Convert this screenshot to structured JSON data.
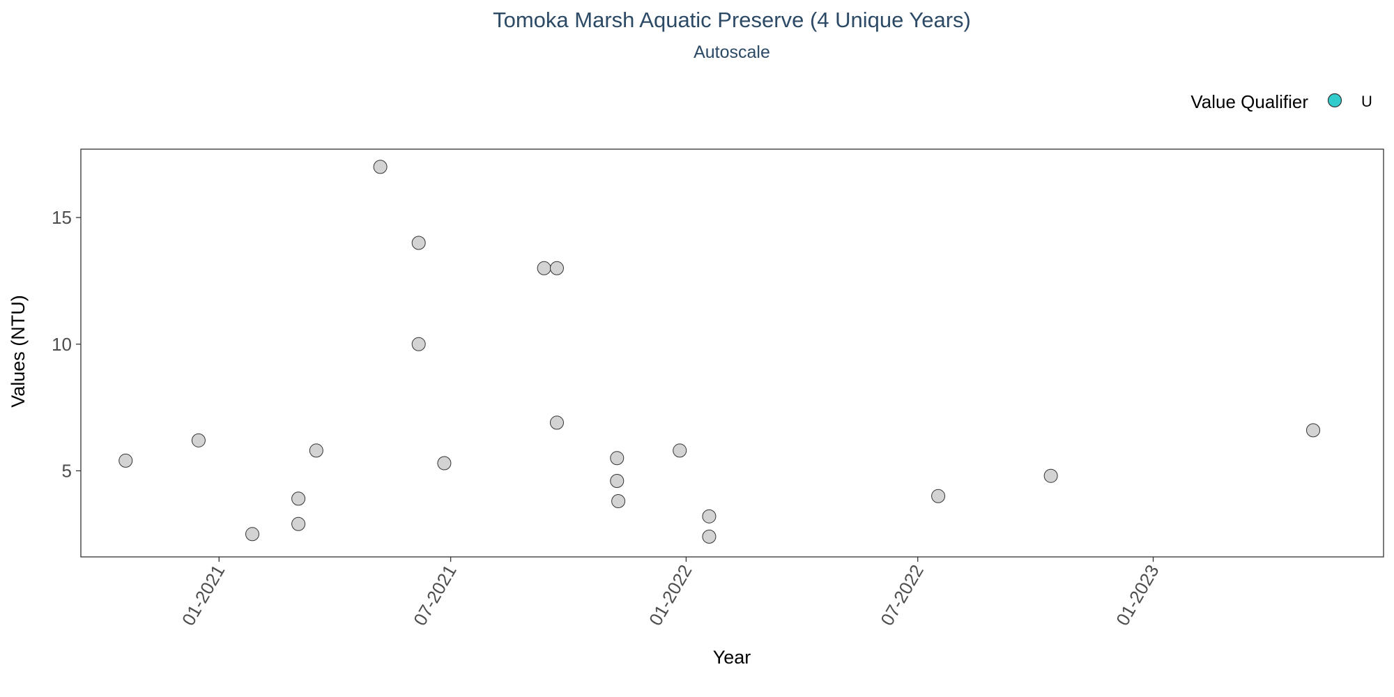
{
  "chart_data": {
    "type": "scatter",
    "title": "Tomoka Marsh Aquatic Preserve (4 Unique Years)",
    "subtitle": "Autoscale",
    "xlabel": "Year",
    "ylabel": "Values (NTU)",
    "x_ticks": [
      "01-2021",
      "07-2021",
      "01-2022",
      "07-2022",
      "01-2023"
    ],
    "y_ticks": [
      5,
      10,
      15
    ],
    "xlim": [
      "2020-09-15",
      "2023-06-30"
    ],
    "ylim": [
      1.6,
      17.7
    ],
    "grid": false,
    "legend": {
      "title": "Value Qualifier",
      "position": "top-right",
      "entries": [
        {
          "label": "U",
          "color": "#33cccc"
        }
      ]
    },
    "point_color": "#d3d3d3",
    "point_stroke": "#333333",
    "series": [
      {
        "points": [
          {
            "x": "2020-10-20",
            "y": 5.4
          },
          {
            "x": "2020-12-16",
            "y": 6.2
          },
          {
            "x": "2021-01-27",
            "y": 2.5
          },
          {
            "x": "2021-03-04",
            "y": 3.9
          },
          {
            "x": "2021-03-04",
            "y": 2.9
          },
          {
            "x": "2021-03-18",
            "y": 5.8
          },
          {
            "x": "2021-05-07",
            "y": 17.0
          },
          {
            "x": "2021-06-06",
            "y": 14.0
          },
          {
            "x": "2021-06-06",
            "y": 10.0
          },
          {
            "x": "2021-06-26",
            "y": 5.3
          },
          {
            "x": "2021-09-12",
            "y": 13.0
          },
          {
            "x": "2021-09-22",
            "y": 13.0
          },
          {
            "x": "2021-09-22",
            "y": 6.9
          },
          {
            "x": "2021-11-08",
            "y": 5.5
          },
          {
            "x": "2021-11-08",
            "y": 4.6
          },
          {
            "x": "2021-11-09",
            "y": 3.8
          },
          {
            "x": "2021-12-27",
            "y": 5.8
          },
          {
            "x": "2022-01-19",
            "y": 3.2
          },
          {
            "x": "2022-01-19",
            "y": 2.4
          },
          {
            "x": "2022-07-17",
            "y": 4.0
          },
          {
            "x": "2022-10-13",
            "y": 4.8
          },
          {
            "x": "2023-05-06",
            "y": 6.6
          }
        ]
      }
    ]
  }
}
